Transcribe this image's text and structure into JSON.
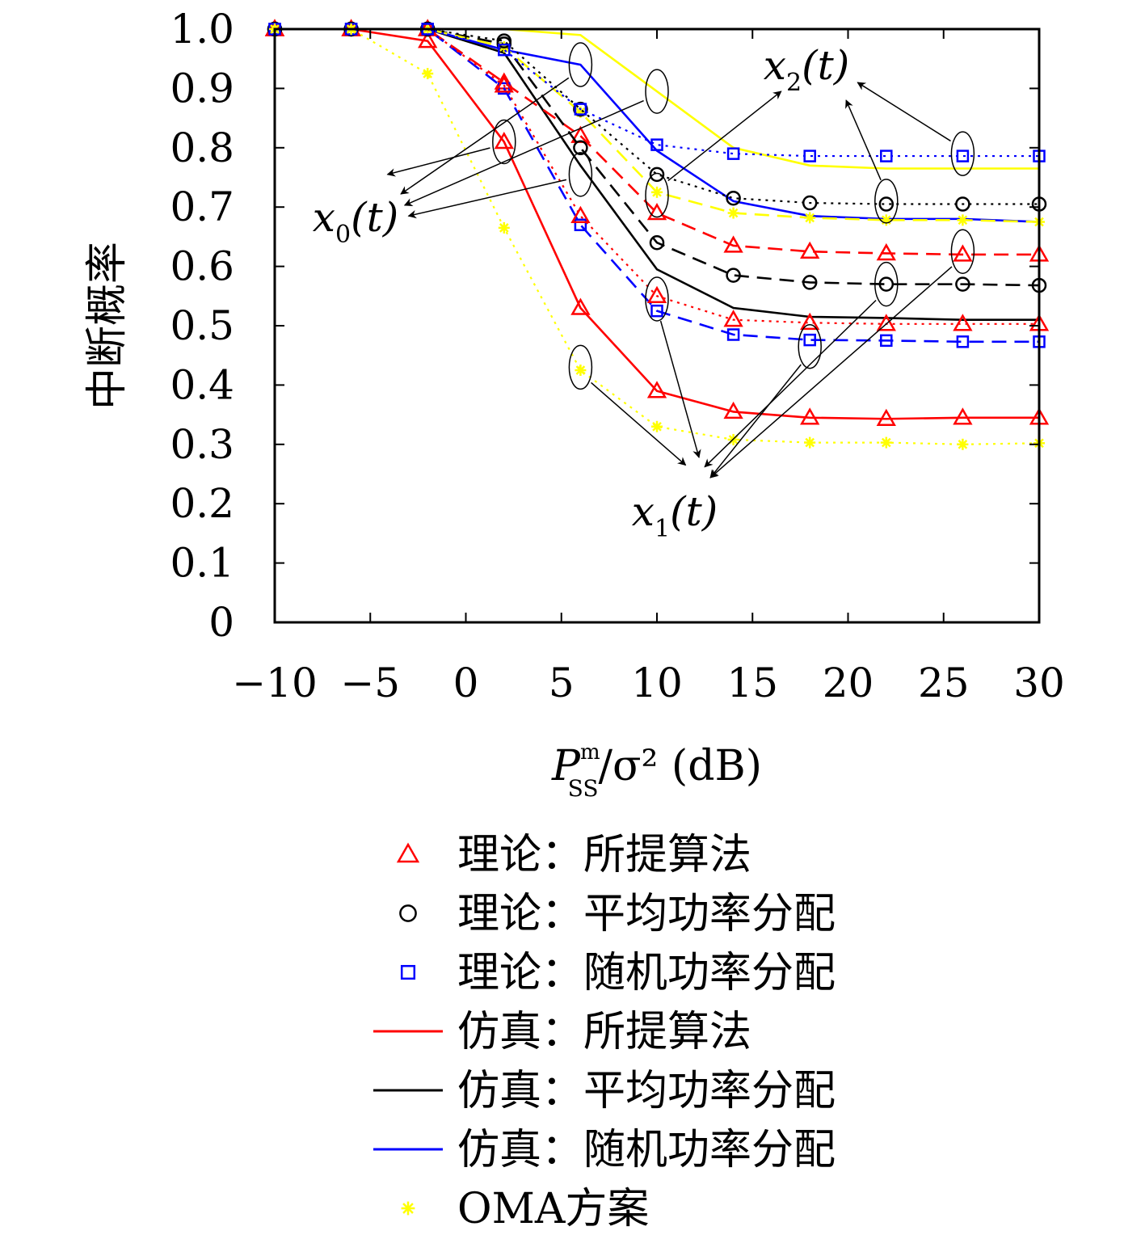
{
  "chart_data": {
    "type": "line",
    "ylabel": "中断概率",
    "xlabel": {
      "main": "P",
      "sub": "SS",
      "sup": "m",
      "rest": "/σ² (dB)"
    },
    "xlim": [
      -10,
      30
    ],
    "ylim": [
      0,
      1.0
    ],
    "xticks": [
      "−10",
      "−5",
      "0",
      "5",
      "10",
      "15",
      "20",
      "25",
      "30"
    ],
    "xtick_values": [
      -10,
      -5,
      0,
      5,
      10,
      15,
      20,
      25,
      30
    ],
    "yticks": [
      "0",
      "0.1",
      "0.2",
      "0.3",
      "0.4",
      "0.5",
      "0.6",
      "0.7",
      "0.8",
      "0.9",
      "1.0"
    ],
    "ytick_values": [
      0,
      0.1,
      0.2,
      0.3,
      0.4,
      0.5,
      0.6,
      0.7,
      0.8,
      0.9,
      1.0
    ],
    "x": [
      -10,
      -6,
      -2,
      2,
      6,
      10,
      14,
      18,
      22,
      26,
      30
    ],
    "colors": {
      "red": "#ff0000",
      "black": "#000000",
      "blue": "#0000ff",
      "yellow": "#ffff00"
    },
    "series": [
      {
        "user": "x0",
        "method": "proposed",
        "color": "red",
        "line": "solid",
        "marker": "triangle",
        "values": [
          1.0,
          1.0,
          0.98,
          0.81,
          0.53,
          0.39,
          0.355,
          0.345,
          0.343,
          0.345,
          0.345
        ]
      },
      {
        "user": "x0",
        "method": "average",
        "color": "black",
        "line": "solid",
        "marker": "none",
        "values": [
          1.0,
          1.0,
          1.0,
          0.96,
          0.77,
          0.595,
          0.53,
          0.515,
          0.513,
          0.51,
          0.51
        ]
      },
      {
        "user": "x0",
        "method": "random",
        "color": "blue",
        "line": "solid",
        "marker": "none",
        "values": [
          1.0,
          1.0,
          1.0,
          0.965,
          0.94,
          0.795,
          0.71,
          0.685,
          0.68,
          0.68,
          0.675
        ]
      },
      {
        "user": "x0",
        "method": "OMA",
        "color": "yellow",
        "line": "solid",
        "marker": "none",
        "values": [
          1.0,
          1.0,
          1.0,
          1.0,
          0.99,
          0.895,
          0.8,
          0.77,
          0.765,
          0.765,
          0.765
        ]
      },
      {
        "user": "x1",
        "method": "proposed",
        "color": "red",
        "line": "dashed",
        "marker": "triangle",
        "values": [
          1.0,
          1.0,
          1.0,
          0.91,
          0.82,
          0.69,
          0.635,
          0.625,
          0.622,
          0.62,
          0.62
        ]
      },
      {
        "user": "x1",
        "method": "average",
        "color": "black",
        "line": "dashed",
        "marker": "circle",
        "values": [
          1.0,
          1.0,
          1.0,
          0.975,
          0.8,
          0.64,
          0.585,
          0.573,
          0.57,
          0.57,
          0.568
        ]
      },
      {
        "user": "x1",
        "method": "random",
        "color": "blue",
        "line": "dashed",
        "marker": "square",
        "values": [
          1.0,
          1.0,
          1.0,
          0.9,
          0.67,
          0.525,
          0.485,
          0.476,
          0.475,
          0.473,
          0.473
        ]
      },
      {
        "user": "x1",
        "method": "OMA",
        "color": "yellow",
        "line": "dashed",
        "marker": "star",
        "values": [
          1.0,
          1.0,
          1.0,
          0.97,
          0.86,
          0.725,
          0.69,
          0.682,
          0.678,
          0.678,
          0.675
        ]
      },
      {
        "user": "x2",
        "method": "proposed",
        "color": "red",
        "line": "dotted",
        "marker": "triangle",
        "values": [
          1.0,
          1.0,
          1.0,
          0.905,
          0.685,
          0.55,
          0.51,
          0.505,
          0.503,
          0.503,
          0.503
        ]
      },
      {
        "user": "x2",
        "method": "average",
        "color": "black",
        "line": "dotted",
        "marker": "circle",
        "values": [
          1.0,
          1.0,
          1.0,
          0.98,
          0.865,
          0.755,
          0.715,
          0.707,
          0.705,
          0.705,
          0.705
        ]
      },
      {
        "user": "x2",
        "method": "random",
        "color": "blue",
        "line": "dotted",
        "marker": "square",
        "values": [
          1.0,
          1.0,
          1.0,
          0.965,
          0.865,
          0.805,
          0.79,
          0.786,
          0.786,
          0.786,
          0.786
        ]
      },
      {
        "user": "x2",
        "method": "OMA",
        "color": "yellow",
        "line": "dotted",
        "marker": "star",
        "values": [
          1.0,
          1.0,
          0.925,
          0.665,
          0.425,
          0.33,
          0.308,
          0.303,
          0.303,
          0.3,
          0.302
        ]
      }
    ],
    "annotations": [
      {
        "base": "x",
        "sub": "0",
        "rest": "(t)",
        "ellipses": [
          [
            2,
            0.81
          ],
          [
            6,
            0.94
          ],
          [
            10,
            0.895
          ],
          [
            6,
            0.755
          ]
        ],
        "arrow_to": [
          [
            -4.1,
            0.755
          ],
          [
            -3.4,
            0.722
          ],
          [
            -3.2,
            0.703
          ],
          [
            -3.0,
            0.685
          ]
        ]
      },
      {
        "base": "x",
        "sub": "1",
        "rest": "(t)",
        "ellipses": [
          [
            6,
            0.43
          ],
          [
            10,
            0.545
          ],
          [
            22,
            0.57
          ],
          [
            18,
            0.465
          ],
          [
            26,
            0.625
          ]
        ],
        "arrow_to": [
          [
            11.5,
            0.265
          ],
          [
            12.2,
            0.278
          ],
          [
            12.5,
            0.262
          ],
          [
            12.8,
            0.244
          ]
        ]
      },
      {
        "base": "x",
        "sub": "2",
        "rest": "(t)",
        "ellipses": [
          [
            10,
            0.72
          ],
          [
            22,
            0.71
          ],
          [
            26,
            0.79
          ]
        ],
        "arrow_to": [
          [
            16.5,
            0.895
          ],
          [
            19.9,
            0.88
          ],
          [
            20.5,
            0.91
          ]
        ]
      }
    ],
    "legend": {
      "position": "below",
      "entries": [
        {
          "label": "理论：所提算法",
          "color": "red",
          "symbol": "triangle"
        },
        {
          "label": "理论：平均功率分配",
          "color": "black",
          "symbol": "circle"
        },
        {
          "label": "理论：随机功率分配",
          "color": "blue",
          "symbol": "square"
        },
        {
          "label": "仿真：所提算法",
          "color": "red",
          "symbol": "line"
        },
        {
          "label": "仿真：平均功率分配",
          "color": "black",
          "symbol": "line"
        },
        {
          "label": "仿真：随机功率分配",
          "color": "blue",
          "symbol": "line"
        },
        {
          "label": "OMA方案",
          "color": "yellow",
          "symbol": "star"
        }
      ]
    }
  }
}
